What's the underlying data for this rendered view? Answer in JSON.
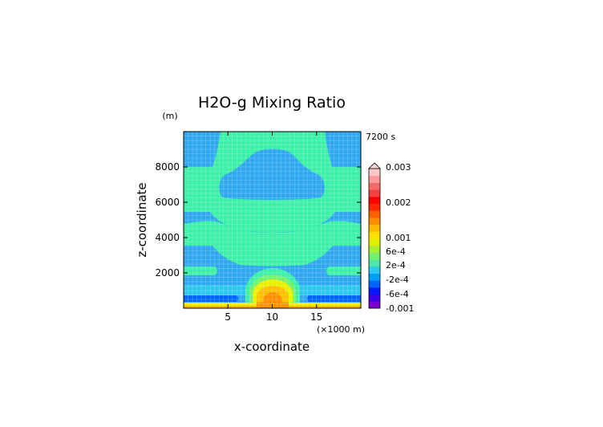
{
  "chart_data": {
    "type": "heatmap",
    "title": "H2O-g Mixing Ratio",
    "xlabel": "x-coordinate",
    "ylabel": "z-coordinate",
    "x_units": "(×1000 m)",
    "y_units": "(m)",
    "time_label": "7200 s",
    "x_range": [
      0,
      20
    ],
    "y_range": [
      0,
      10000
    ],
    "x_ticks": [
      5,
      10,
      15
    ],
    "y_ticks": [
      2000,
      4000,
      6000,
      8000
    ],
    "grid": true,
    "colorbar": {
      "tick_labels": [
        "0.003",
        "0.002",
        "0.001",
        "6e-4",
        "2e-4",
        "-2e-4",
        "-6e-4",
        "-0.001"
      ],
      "colors": [
        "#7b00d0",
        "#3a00e8",
        "#0018ff",
        "#0064ff",
        "#00a0f8",
        "#2cc8f0",
        "#50e6a8",
        "#74f070",
        "#a8f030",
        "#e0f000",
        "#ffe000",
        "#ffb800",
        "#ff8c00",
        "#ff6000",
        "#ff2800",
        "#ff0000",
        "#f04040",
        "#f86a6a",
        "#ff9a9a",
        "#ffc8c8"
      ]
    },
    "color_scheme": {
      "background_band": "#30a8f0",
      "humid_band": "#3cf0a8",
      "surface_yellow": "#e8f000",
      "plume_orange": "#ff9000"
    }
  }
}
